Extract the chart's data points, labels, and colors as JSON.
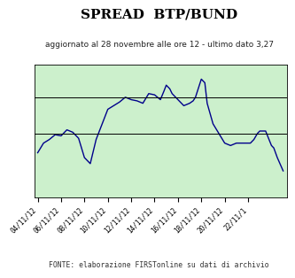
{
  "title": "SPREAD  BTP/BUND",
  "subtitle": "aggiornato al 28 novembre alle ore 12 - ultimo dato 3,27",
  "footer": "FONTE: elaborazione FIRSTonline su dati di archivio",
  "x_labels": [
    "04/11/12",
    "06/11/12",
    "08/11/12",
    "10/11/12",
    "12/11/12",
    "14/11/12",
    "16/11/12",
    "18/11/12",
    "20/11/12",
    "22/11/1"
  ],
  "x_values": [
    0,
    2,
    4,
    6,
    8,
    10,
    12,
    14,
    16,
    18
  ],
  "y_data": [
    [
      0,
      3.42
    ],
    [
      0.5,
      3.5
    ],
    [
      1.0,
      3.53
    ],
    [
      1.5,
      3.57
    ],
    [
      2,
      3.56
    ],
    [
      2.5,
      3.61
    ],
    [
      3,
      3.59
    ],
    [
      3.5,
      3.54
    ],
    [
      4,
      3.38
    ],
    [
      4.5,
      3.33
    ],
    [
      5,
      3.53
    ],
    [
      6,
      3.78
    ],
    [
      7,
      3.84
    ],
    [
      7.5,
      3.88
    ],
    [
      8,
      3.86
    ],
    [
      8.5,
      3.85
    ],
    [
      9,
      3.83
    ],
    [
      9.5,
      3.91
    ],
    [
      10,
      3.9
    ],
    [
      10.5,
      3.86
    ],
    [
      10.8,
      3.93
    ],
    [
      11,
      3.98
    ],
    [
      11.3,
      3.95
    ],
    [
      11.5,
      3.91
    ],
    [
      12,
      3.86
    ],
    [
      12.5,
      3.81
    ],
    [
      13,
      3.83
    ],
    [
      13.3,
      3.85
    ],
    [
      13.5,
      3.88
    ],
    [
      14,
      4.03
    ],
    [
      14.3,
      4.0
    ],
    [
      14.5,
      3.83
    ],
    [
      15,
      3.66
    ],
    [
      15.5,
      3.58
    ],
    [
      16,
      3.5
    ],
    [
      16.5,
      3.48
    ],
    [
      17,
      3.5
    ],
    [
      17.5,
      3.5
    ],
    [
      18,
      3.5
    ],
    [
      18.2,
      3.5
    ],
    [
      18.5,
      3.53
    ],
    [
      18.8,
      3.58
    ],
    [
      19,
      3.6
    ],
    [
      19.5,
      3.6
    ],
    [
      20,
      3.48
    ],
    [
      20.2,
      3.46
    ],
    [
      20.5,
      3.38
    ],
    [
      21,
      3.27
    ]
  ],
  "hlines": [
    3.58,
    3.88
  ],
  "ylim": [
    3.05,
    4.15
  ],
  "xlim": [
    -0.3,
    21.3
  ],
  "line_color": "#00008B",
  "fill_color": "#ccf0cc",
  "bg_color": "#ccf0cc",
  "outer_bg": "#ffffff",
  "title_fontsize": 11,
  "subtitle_fontsize": 6.5,
  "footer_fontsize": 5.8,
  "tick_fontsize": 5.5
}
